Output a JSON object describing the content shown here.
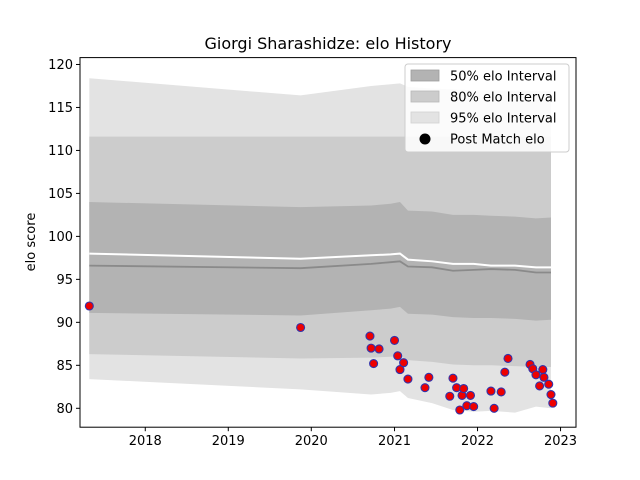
{
  "chart_data": {
    "type": "area",
    "title": "Giorgi Sharashidze: elo History",
    "xlabel": "",
    "ylabel": "elo score",
    "xlim": [
      "2017-03-20",
      "2023-03-10"
    ],
    "ylim": [
      77.8,
      120.8
    ],
    "x_ticks": [
      "2018-01-01",
      "2019-01-01",
      "2020-01-01",
      "2021-01-01",
      "2022-01-01",
      "2023-01-01"
    ],
    "x_tick_labels": [
      "2018",
      "2019",
      "2020",
      "2021",
      "2022",
      "2023"
    ],
    "y_ticks": [
      80,
      85,
      90,
      95,
      100,
      105,
      110,
      115,
      120
    ],
    "y_tick_labels": [
      "80",
      "85",
      "90",
      "95",
      "100",
      "105",
      "110",
      "115",
      "120"
    ],
    "grid": false,
    "legend_position": "upper right",
    "legend": [
      "50% elo Interval",
      "80% elo Interval",
      "95% elo Interval",
      "Post Match elo"
    ],
    "colors": {
      "band50": "#b3b3b3",
      "band80": "#cccccc",
      "band95": "#e3e3e3",
      "mean_line": "#ffffff",
      "median_line": "#8a8a8a",
      "point_fill": "#ee0000",
      "point_edge": "#3333aa"
    },
    "bands": {
      "dates": [
        "2017-04-30",
        "2019-11-15",
        "2020-09-20",
        "2020-12-15",
        "2021-01-25",
        "2021-03-01",
        "2021-06-15",
        "2021-09-15",
        "2021-12-15",
        "2022-03-01",
        "2022-06-15",
        "2022-09-15",
        "2022-11-20"
      ],
      "p95_upper": [
        118.4,
        116.4,
        117.5,
        117.7,
        117.8,
        117.4,
        117.2,
        117.1,
        117.0,
        117.0,
        116.9,
        116.9,
        116.9
      ],
      "p80_upper": [
        111.6,
        111.6,
        111.6,
        111.6,
        111.6,
        111.6,
        111.6,
        111.6,
        111.6,
        111.6,
        111.6,
        111.6,
        111.6
      ],
      "p50_upper": [
        104.0,
        103.4,
        103.6,
        103.8,
        104.0,
        103.0,
        102.9,
        102.5,
        102.5,
        102.4,
        102.3,
        102.1,
        102.2
      ],
      "mean": [
        98.0,
        97.4,
        97.8,
        97.9,
        98.0,
        97.3,
        97.1,
        96.8,
        96.8,
        96.6,
        96.6,
        96.4,
        96.4
      ],
      "median": [
        96.6,
        96.3,
        96.8,
        97.0,
        97.1,
        96.5,
        96.4,
        96.0,
        96.1,
        96.2,
        96.1,
        95.8,
        95.8
      ],
      "p50_lower": [
        91.1,
        90.8,
        91.4,
        91.6,
        91.8,
        91.0,
        90.9,
        90.6,
        90.5,
        90.5,
        90.4,
        90.2,
        90.3
      ],
      "p80_lower": [
        86.3,
        85.8,
        85.9,
        86.0,
        86.1,
        85.6,
        85.4,
        85.1,
        85.0,
        85.0,
        84.9,
        84.8,
        84.8
      ],
      "p95_lower": [
        83.4,
        82.2,
        81.6,
        81.8,
        82.0,
        81.2,
        80.6,
        79.8,
        79.6,
        79.7,
        79.5,
        80.2,
        80.0
      ]
    },
    "points": [
      {
        "x": "2017-04-30",
        "y": 91.9
      },
      {
        "x": "2019-11-15",
        "y": 89.4
      },
      {
        "x": "2020-09-15",
        "y": 88.4
      },
      {
        "x": "2020-09-20",
        "y": 87.0
      },
      {
        "x": "2020-10-01",
        "y": 85.2
      },
      {
        "x": "2020-10-25",
        "y": 86.9
      },
      {
        "x": "2021-01-01",
        "y": 87.9
      },
      {
        "x": "2021-01-15",
        "y": 86.1
      },
      {
        "x": "2021-01-25",
        "y": 84.5
      },
      {
        "x": "2021-02-10",
        "y": 85.3
      },
      {
        "x": "2021-03-01",
        "y": 83.4
      },
      {
        "x": "2021-05-15",
        "y": 82.4
      },
      {
        "x": "2021-06-01",
        "y": 83.6
      },
      {
        "x": "2021-09-01",
        "y": 81.4
      },
      {
        "x": "2021-09-15",
        "y": 83.5
      },
      {
        "x": "2021-10-01",
        "y": 82.4
      },
      {
        "x": "2021-10-15",
        "y": 79.8
      },
      {
        "x": "2021-10-25",
        "y": 81.5
      },
      {
        "x": "2021-11-01",
        "y": 82.3
      },
      {
        "x": "2021-11-15",
        "y": 80.3
      },
      {
        "x": "2021-12-01",
        "y": 81.5
      },
      {
        "x": "2021-12-15",
        "y": 80.2
      },
      {
        "x": "2022-03-01",
        "y": 82.0
      },
      {
        "x": "2022-03-15",
        "y": 80.0
      },
      {
        "x": "2022-04-15",
        "y": 81.9
      },
      {
        "x": "2022-05-01",
        "y": 84.2
      },
      {
        "x": "2022-05-15",
        "y": 85.8
      },
      {
        "x": "2022-08-20",
        "y": 85.1
      },
      {
        "x": "2022-09-01",
        "y": 84.6
      },
      {
        "x": "2022-09-15",
        "y": 83.9
      },
      {
        "x": "2022-10-01",
        "y": 82.6
      },
      {
        "x": "2022-10-15",
        "y": 84.5
      },
      {
        "x": "2022-10-20",
        "y": 83.6
      },
      {
        "x": "2022-11-10",
        "y": 82.8
      },
      {
        "x": "2022-11-20",
        "y": 81.6
      },
      {
        "x": "2022-11-28",
        "y": 80.6
      }
    ]
  }
}
